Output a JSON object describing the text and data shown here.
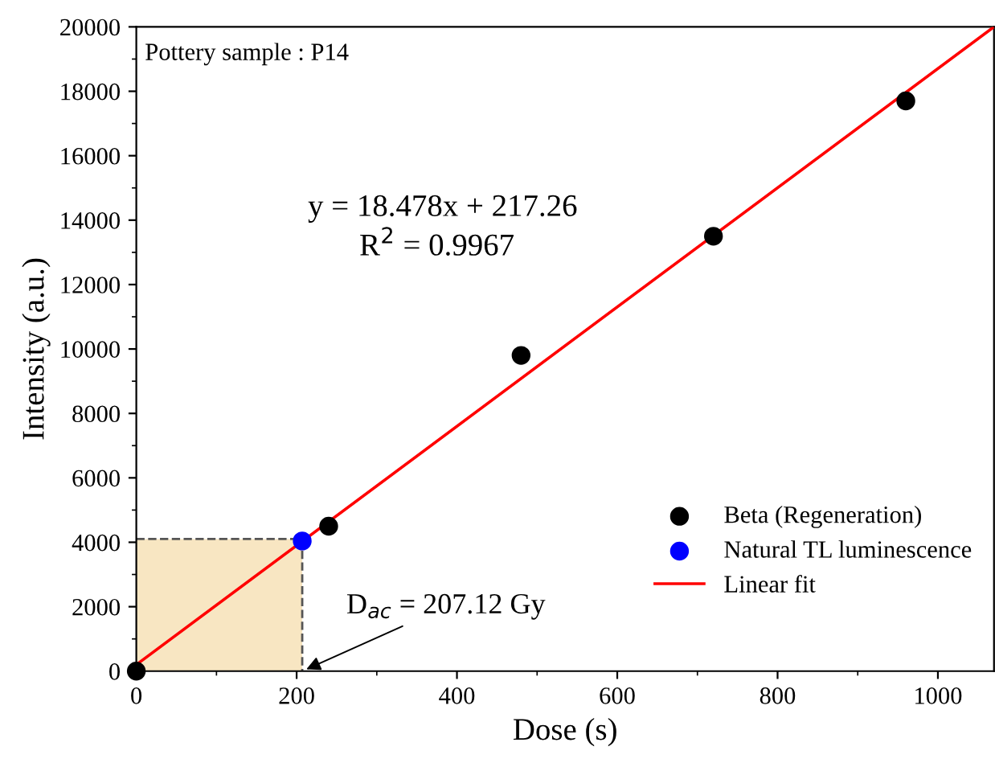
{
  "chart_data": {
    "type": "scatter",
    "xlabel": "Dose (s)",
    "ylabel": "Intensity (a.u.)",
    "xlim": [
      0,
      1070
    ],
    "ylim": [
      0,
      20000
    ],
    "xticks": [
      0,
      200,
      400,
      600,
      800,
      1000
    ],
    "yticks": [
      0,
      2000,
      4000,
      6000,
      8000,
      10000,
      12000,
      14000,
      16000,
      18000,
      20000
    ],
    "grid": false,
    "legend": "bottom right",
    "series": [
      {
        "type": "area",
        "color": "#f8e6c2",
        "line_style": "dashed",
        "marker": "none",
        "x": [
          0,
          207
        ],
        "values": [
          4100,
          4100
        ]
      },
      {
        "name": "Beta (Regeneration)",
        "color": "#000000",
        "marker": "circle",
        "x": [
          0,
          240,
          480,
          720,
          960
        ],
        "values": [
          0,
          4500,
          9800,
          13500,
          17700
        ]
      },
      {
        "name": "Natural TL luminescence",
        "color": "#0000ff",
        "marker": "circle",
        "x": [
          207
        ],
        "values": [
          4040
        ]
      },
      {
        "name": "Linear fit",
        "type": "line",
        "color": "#ff0000",
        "line_style": "solid",
        "marker": "none",
        "x": [
          0,
          1070
        ],
        "values": [
          200,
          20000
        ]
      }
    ],
    "annotations": [
      "Pottery sample : P14",
      "y = 18.478x + 217.26",
      "R$^{2}$ = 0.9967",
      {
        "text": "D$_{ac}$ = 207.12 Gy",
        "x": 207,
        "y": 0
      }
    ]
  }
}
